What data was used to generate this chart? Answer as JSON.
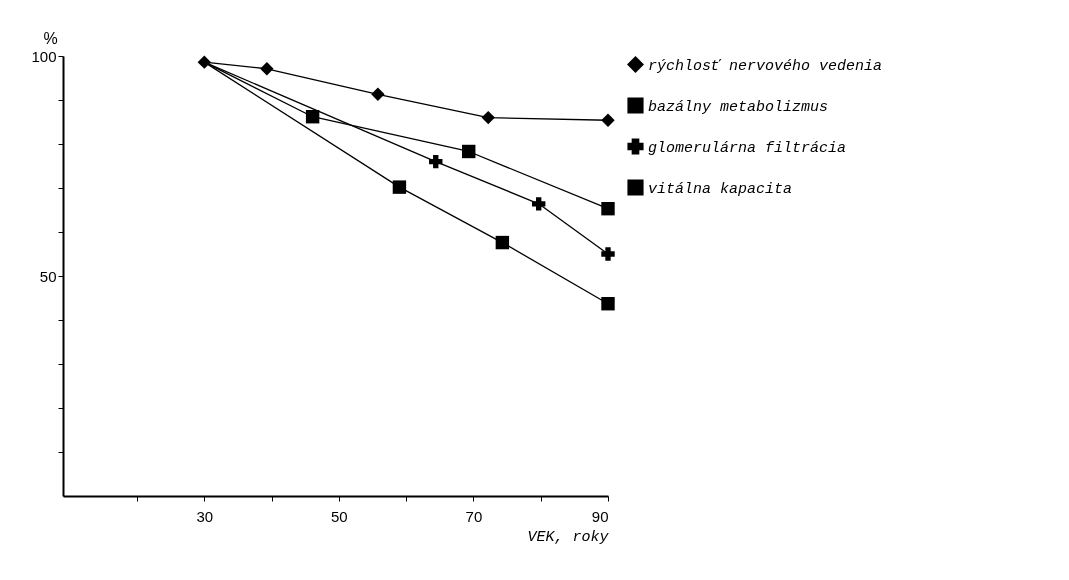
{
  "chart_data": {
    "type": "line",
    "xlabel": "VEK, roky",
    "ylabel": "%",
    "series": [
      {
        "name": "rýchlosť nervového vedenia",
        "color": "#000000",
        "marker": "diamond",
        "x": [
          30,
          39.3,
          55.8,
          72.2,
          90
        ],
        "values": [
          98.6,
          97.1,
          91.3,
          86.0,
          85.4
        ]
      },
      {
        "name": "bazálny metabolizmus",
        "color": "#000000",
        "marker": "square",
        "x": [
          30,
          46.1,
          69.3,
          90
        ],
        "values": [
          98.6,
          86.2,
          78.3,
          65.3
        ]
      },
      {
        "name": "glomerulárna filtrácia",
        "color": "#000000",
        "marker": "cross",
        "x": [
          30,
          64.4,
          79.7,
          90
        ],
        "values": [
          98.6,
          76.0,
          66.4,
          55.0
        ]
      },
      {
        "name": "vitálna kapacita",
        "color": "#000000",
        "marker": "square",
        "x": [
          30,
          59.0,
          74.3,
          90
        ],
        "values": [
          98.6,
          70.2,
          57.6,
          43.7
        ]
      }
    ],
    "xlim": [
      9,
      90
    ],
    "xticks": [
      {
        "value": 20,
        "label": null
      },
      30,
      {
        "value": 40,
        "label": null
      },
      50,
      {
        "value": 60,
        "label": null
      },
      70,
      {
        "value": 80,
        "label": null
      },
      90
    ],
    "ylim": [
      0,
      100
    ],
    "yticks": [
      {
        "value": 10,
        "label": null
      },
      {
        "value": 20,
        "label": null
      },
      {
        "value": 30,
        "label": null
      },
      {
        "value": 40,
        "label": null
      },
      50,
      {
        "value": 60,
        "label": null
      },
      {
        "value": 70,
        "label": null
      },
      {
        "value": 80,
        "label": null
      },
      {
        "value": 90,
        "label": null
      },
      100
    ],
    "grid": false,
    "legend": "right",
    "line_style": "solid"
  }
}
